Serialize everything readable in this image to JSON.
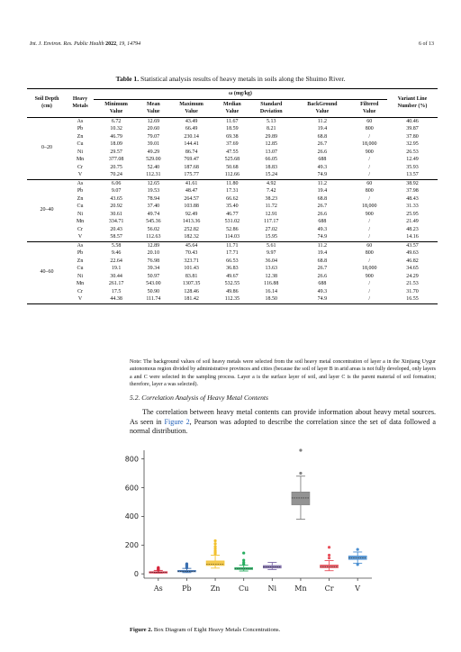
{
  "header": {
    "journal": "Int. J. Environ. Res. Public Health",
    "year": "2022",
    "volume": "19",
    "article": "14794",
    "page": "6 of 13"
  },
  "table": {
    "label": "Table 1.",
    "caption": "Statistical analysis results of heavy metals in soils along the Shuimo River.",
    "col_depth": "Soil Depth\n(cm)",
    "col_metals": "Heavy\nMetals",
    "col_group": "ω (mg/kg)",
    "col_variant": "Variant Line\nNumber (%)",
    "sub_headers": [
      "Minimum\nValue",
      "Mean\nValue",
      "Maximum\nValue",
      "Median\nValue",
      "Standard\nDeviation",
      "BackGround\nValue",
      "Filtered\nValue"
    ],
    "groups": [
      {
        "depth": "0–20",
        "metals": "As\nPb\nZn\nCu\nNi\nMn\nCr\nV",
        "min": "6.72\n10.32\n46.79\n18.09\n29.57\n377.08\n20.75\n70.24",
        "mean": "12.69\n20.60\n79.07\n39.01\n49.29\n529.00\n52.40\n112.31",
        "max": "43.49\n66.49\n230.14\n144.41\n86.74\n769.47\n187.68\n175.77",
        "median": "11.67\n18.59\n69.38\n37.69\n47.55\n525.68\n50.68\n112.66",
        "sd": "5.13\n8.21\n29.89\n12.85\n13.07\n66.05\n18.83\n15.24",
        "bg": "11.2\n19.4\n68.8\n26.7\n26.6\n688\n49.3\n74.9",
        "filtered": "60\n800\n/\n18,000\n900\n/\n/\n/",
        "variant": "40.46\n39.87\n37.80\n32.95\n26.53\n12.49\n35.93\n13.57"
      },
      {
        "depth": "20–40",
        "metals": "As\nPb\nZn\nCu\nNi\nMn\nCr\nV",
        "min": "6.06\n9.07\n43.65\n20.92\n30.61\n334.71\n20.43\n58.57",
        "mean": "12.65\n19.53\n78.94\n37.40\n49.74\n545.36\n56.02\n112.63",
        "max": "41.61\n48.47\n264.57\n103.88\n92.49\n1413.36\n252.82\n182.32",
        "median": "11.80\n17.31\n66.62\n35.40\n46.77\n531.02\n52.86\n114.03",
        "sd": "4.92\n7.42\n38.23\n11.72\n12.91\n117.17\n27.02\n15.95",
        "bg": "11.2\n19.4\n68.8\n26.7\n26.6\n688\n49.3\n74.9",
        "filtered": "60\n800\n/\n18,000\n900\n/\n/\n/",
        "variant": "38.92\n37.98\n48.43\n31.33\n25.95\n21.49\n48.23\n14.16"
      },
      {
        "depth": "40–60",
        "metals": "As\nPb\nZn\nCu\nNi\nMn\nCr\nV",
        "min": "5.58\n9.46\n22.64\n19.1\n30.44\n261.17\n17.5\n44.38",
        "mean": "12.89\n20.10\n76.98\n39.34\n50.97\n543.00\n50.90\n111.74",
        "max": "45.64\n70.43\n323.71\n101.43\n83.81\n1307.35\n128.46\n181.42",
        "median": "11.71\n17.71\n66.53\n36.83\n49.67\n532.55\n49.86\n112.35",
        "sd": "5.61\n9.97\n36.04\n13.63\n12.38\n116.88\n16.14\n18.50",
        "bg": "11.2\n19.4\n68.8\n26.7\n26.6\n688\n49.3\n74.9",
        "filtered": "60\n800\n/\n18,000\n900\n/\n/\n/",
        "variant": "43.57\n49.63\n46.82\n34.65\n24.29\n21.53\n31.70\n16.55"
      }
    ],
    "note": "Note: The background values of soil heavy metals were selected from the soil heavy metal concentration of layer a in the Xinjiang Uygur autonomous region divided by administrative provinces and cities (because the soil of layer B in arid areas is not fully developed, only layers a and C were selected in the sampling process. Layer a is the surface layer of soil, and layer C is the parent material of soil formation; therefore, layer a was selected)."
  },
  "section": {
    "heading": "5.2. Correlation Analysis of Heavy Metal Contents",
    "para_before": "The correlation between heavy metal contents can provide information about heavy metal sources. As seen in ",
    "figure_ref": "Figure 2",
    "para_after": ", Pearson was adopted to describe the correlation since the set of data followed a normal distribution."
  },
  "figure": {
    "label": "Figure 2.",
    "caption": "Box Diagram of Eight Heavy Metals Concentrations."
  },
  "chart_data": {
    "type": "box",
    "title": "",
    "xlabel": "",
    "ylabel": "",
    "ylim": [
      -30,
      860
    ],
    "yticks": [
      0,
      200,
      400,
      600,
      800
    ],
    "categories": [
      "As",
      "Pb",
      "Zn",
      "Cu",
      "Ni",
      "Mn",
      "Cr",
      "V"
    ],
    "colors": [
      "#d7263d",
      "#3a6fb0",
      "#f2c12e",
      "#27ae60",
      "#7d6aa8",
      "#808080",
      "#e8505b",
      "#4a8fd1"
    ],
    "boxes": [
      {
        "min": 6,
        "q1": 9,
        "median": 12,
        "q3": 15,
        "max": 24,
        "outliers": [
          28,
          32,
          36,
          40,
          44
        ]
      },
      {
        "min": 9,
        "q1": 14,
        "median": 18,
        "q3": 24,
        "max": 38,
        "outliers": [
          42,
          48,
          54,
          60,
          66,
          70
        ]
      },
      {
        "min": 40,
        "q1": 58,
        "median": 68,
        "q3": 90,
        "max": 130,
        "outliers": [
          140,
          150,
          160,
          175,
          190,
          210,
          230
        ]
      },
      {
        "min": 20,
        "q1": 30,
        "median": 37,
        "q3": 44,
        "max": 60,
        "outliers": [
          68,
          80,
          95,
          145
        ]
      },
      {
        "min": 30,
        "q1": 40,
        "median": 48,
        "q3": 58,
        "max": 80,
        "outliers": []
      },
      {
        "min": 380,
        "q1": 480,
        "median": 528,
        "q3": 570,
        "max": 680,
        "outliers": [
          700,
          860
        ]
      },
      {
        "min": 22,
        "q1": 42,
        "median": 50,
        "q3": 62,
        "max": 92,
        "outliers": [
          110,
          130,
          185
        ]
      },
      {
        "min": 74,
        "q1": 100,
        "median": 112,
        "q3": 125,
        "max": 152,
        "outliers": [
          65,
          170
        ]
      }
    ]
  }
}
